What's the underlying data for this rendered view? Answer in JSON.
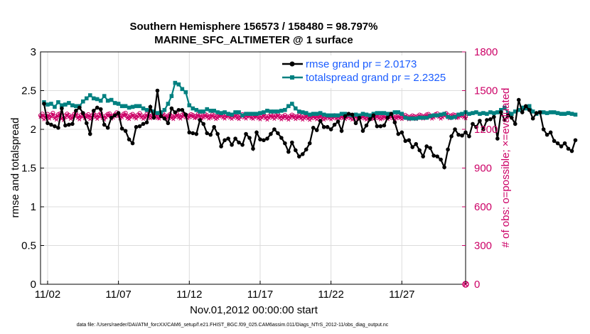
{
  "chart_data": {
    "type": "line",
    "title": "Southern Hemisphere 156573 / 158480 = 98.797%",
    "subtitle": "MARINE_SFC_ALTIMETER @ 1 surface",
    "xlabel": "Nov.01,2012 00:00:00 start",
    "ylabel_left": "rmse and totalspread",
    "ylabel_right": "# of obs: o=possible; ×=evaluated",
    "x_ticks": [
      "11/02",
      "11/07",
      "11/12",
      "11/17",
      "11/22",
      "11/27"
    ],
    "x_tick_days": [
      2,
      7,
      12,
      17,
      22,
      27
    ],
    "xlim_days": [
      1.5,
      31.5
    ],
    "ylim_left": [
      0,
      3
    ],
    "yticks_left": [
      "0",
      "0.5",
      "1",
      "1.5",
      "2",
      "2.5",
      "3"
    ],
    "ylim_right": [
      0,
      1800
    ],
    "yticks_right": [
      "0",
      "300",
      "600",
      "900",
      "1200",
      "1500",
      "1800"
    ],
    "grid": true,
    "legend_position": "top-right",
    "colors": {
      "rmse": "#000000",
      "totalspread": "#008080",
      "obs": "#cc0066",
      "legend_text": "#1a5cff"
    },
    "series": [
      {
        "name": "rmse grand pr = 2.0173",
        "axis": "left",
        "x_start_day": 1.75,
        "x_step_day": 0.25,
        "values": [
          2.33,
          2.08,
          2.06,
          2.04,
          2.02,
          2.27,
          2.05,
          2.06,
          2.07,
          2.24,
          2.28,
          2.21,
          2.08,
          1.94,
          2.24,
          2.28,
          2.26,
          2.06,
          2.02,
          2.15,
          2.18,
          2.21,
          2.01,
          1.98,
          1.87,
          1.82,
          2.03,
          2.04,
          2.07,
          2.09,
          2.29,
          2.15,
          2.5,
          2.17,
          2.14,
          2.08,
          2.27,
          2.22,
          2.25,
          2.25,
          2.19,
          1.96,
          1.95,
          1.94,
          2.12,
          2.07,
          1.95,
          1.93,
          2.03,
          1.94,
          1.78,
          1.86,
          1.88,
          1.8,
          1.88,
          1.83,
          1.8,
          1.94,
          1.89,
          1.75,
          1.96,
          1.87,
          1.86,
          1.88,
          1.94,
          2.0,
          1.95,
          1.89,
          1.82,
          1.71,
          1.83,
          1.73,
          1.65,
          1.68,
          1.74,
          1.82,
          2.02,
          1.99,
          2.11,
          2.03,
          2.03,
          2.0,
          2.06,
          2.1,
          1.98,
          2.17,
          2.2,
          2.19,
          2.08,
          2.15,
          1.98,
          2.05,
          2.13,
          2.18,
          2.04,
          2.04,
          2.05,
          2.15,
          2.2,
          2.09,
          1.94,
          1.96,
          1.85,
          1.86,
          1.77,
          1.81,
          1.73,
          1.65,
          1.78,
          1.76,
          1.66,
          1.65,
          1.61,
          1.51,
          1.74,
          1.91,
          2.0,
          1.93,
          1.92,
          1.96,
          1.91,
          2.07,
          2.03,
          2.11,
          2.0,
          2.12,
          2.13,
          2.16,
          1.88,
          2.22,
          2.12,
          2.18,
          2.15,
          2.07,
          2.38,
          2.22,
          2.3,
          2.25,
          2.14,
          2.21,
          2.22,
          2.0,
          1.93,
          1.96,
          1.85,
          1.82,
          1.78,
          1.82,
          1.75,
          1.72,
          1.86
        ]
      },
      {
        "name": "totalspread grand pr = 2.2325",
        "axis": "left",
        "x_start_day": 1.75,
        "x_step_day": 0.25,
        "values": [
          2.35,
          2.32,
          2.33,
          2.29,
          2.35,
          2.31,
          2.32,
          2.34,
          2.31,
          2.3,
          2.3,
          2.36,
          2.4,
          2.44,
          2.4,
          2.39,
          2.37,
          2.43,
          2.37,
          2.38,
          2.34,
          2.33,
          2.3,
          2.3,
          2.28,
          2.29,
          2.3,
          2.3,
          2.27,
          2.25,
          2.24,
          2.23,
          2.21,
          2.22,
          2.25,
          2.33,
          2.43,
          2.6,
          2.58,
          2.52,
          2.48,
          2.31,
          2.27,
          2.25,
          2.23,
          2.23,
          2.26,
          2.24,
          2.24,
          2.22,
          2.21,
          2.22,
          2.2,
          2.19,
          2.22,
          2.22,
          2.18,
          2.2,
          2.2,
          2.2,
          2.2,
          2.21,
          2.22,
          2.24,
          2.23,
          2.23,
          2.23,
          2.24,
          2.25,
          2.3,
          2.33,
          2.27,
          2.23,
          2.22,
          2.21,
          2.19,
          2.2,
          2.2,
          2.21,
          2.19,
          2.18,
          2.18,
          2.18,
          2.18,
          2.2,
          2.2,
          2.19,
          2.18,
          2.19,
          2.18,
          2.2,
          2.19,
          2.18,
          2.2,
          2.21,
          2.21,
          2.21,
          2.2,
          2.2,
          2.22,
          2.22,
          2.2,
          2.15,
          2.14,
          2.14,
          2.14,
          2.15,
          2.15,
          2.15,
          2.17,
          2.18,
          2.18,
          2.19,
          2.2,
          2.16,
          2.15,
          2.16,
          2.19,
          2.2,
          2.22,
          2.2,
          2.21,
          2.22,
          2.2,
          2.21,
          2.2,
          2.22,
          2.21,
          2.22,
          2.25,
          2.28,
          2.21,
          2.2,
          2.23,
          2.25,
          2.28,
          2.27,
          2.3,
          2.23,
          2.2,
          2.22,
          2.22,
          2.21,
          2.22,
          2.22,
          2.21,
          2.2,
          2.2,
          2.21,
          2.2,
          2.19
        ]
      },
      {
        "name": "possible",
        "axis": "right",
        "marker": "o",
        "x_start_day": 1.5,
        "x_step_day": 0.125,
        "values": [
          1308,
          1320,
          1290,
          1302,
          1318,
          1296,
          1312,
          1326,
          1300,
          1288,
          1315,
          1322,
          1296,
          1284,
          1306,
          1320,
          1310,
          1294,
          1300,
          1318,
          1326,
          1302,
          1290,
          1312,
          1322,
          1298,
          1306,
          1316,
          1292,
          1304,
          1320,
          1308,
          1294,
          1312,
          1324,
          1300,
          1288,
          1306,
          1318,
          1322,
          1296,
          1304,
          1314,
          1330,
          1316,
          1298,
          1306,
          1320,
          1326,
          1300,
          1292,
          1310,
          1318,
          1304,
          1296,
          1312,
          1324,
          1306,
          1294,
          1302,
          1318,
          1310,
          1298,
          1306,
          1320,
          1314,
          1300,
          1296,
          1312,
          1322,
          1308,
          1296,
          1304,
          1316,
          1300,
          1292,
          1310,
          1318,
          1304,
          1296,
          1312,
          1320,
          1306,
          1298,
          1306,
          1316,
          1310,
          1300,
          1302,
          1318,
          1312,
          1296,
          1304,
          1316,
          1308,
          1296,
          1302,
          1314,
          1306,
          1292,
          1300,
          1312,
          1318,
          1304,
          1296,
          1310,
          1316,
          1302,
          1294,
          1306,
          1314,
          1300,
          1292,
          1308,
          1316,
          1304,
          1296,
          1310,
          1318,
          1300,
          1294,
          1306,
          1312,
          1298,
          1290,
          1304,
          1314,
          1300,
          1288,
          1302,
          1312,
          1304,
          1294,
          1306,
          1316,
          1302,
          1290,
          1300,
          1310,
          1298,
          1288,
          1302,
          1312,
          1304,
          1292,
          1300,
          1308,
          1298,
          1288,
          1300,
          1310,
          1296,
          1286,
          1298,
          1308,
          1300,
          1290,
          1302,
          1310,
          1298,
          1288,
          1296,
          1306,
          1298,
          1290,
          1300,
          1308,
          1296,
          1286,
          1298,
          1306,
          1300,
          1292,
          1302,
          1310,
          1298,
          1288,
          1296,
          1306,
          1298,
          1290,
          1300,
          1308,
          1296,
          1288,
          1298,
          1306,
          1300,
          1292,
          1302,
          1310,
          1298,
          1290,
          1296,
          1306,
          1300,
          1292,
          1302,
          1310,
          1298,
          1290,
          1298,
          1306,
          1300,
          1292,
          1302,
          1310,
          1300,
          1290,
          1298,
          1306,
          1300,
          1292,
          1302,
          1312,
          1306,
          1296,
          1302,
          1314,
          1318,
          1306,
          1296,
          1304,
          1316,
          1322,
          1308,
          1296,
          1306,
          1318,
          1324,
          1312,
          1298,
          1306,
          1314,
          1310,
          1300,
          1304,
          1314,
          1318,
          1306,
          1298
        ]
      },
      {
        "name": "evaluated",
        "axis": "right",
        "marker": "x",
        "x_start_day": 1.5,
        "x_step_day": 0.125,
        "values": [
          1296,
          1306,
          1276,
          1290,
          1304,
          1282,
          1298,
          1312,
          1286,
          1274,
          1302,
          1308,
          1282,
          1270,
          1292,
          1306,
          1296,
          1280,
          1286,
          1304,
          1312,
          1288,
          1276,
          1298,
          1308,
          1284,
          1292,
          1302,
          1278,
          1290,
          1306,
          1294,
          1280,
          1298,
          1310,
          1286,
          1274,
          1292,
          1304,
          1308,
          1282,
          1290,
          1300,
          1318,
          1302,
          1284,
          1292,
          1306,
          1312,
          1286,
          1278,
          1296,
          1304,
          1290,
          1282,
          1298,
          1310,
          1292,
          1280,
          1288,
          1304,
          1296,
          1284,
          1292,
          1306,
          1300,
          1286,
          1282,
          1298,
          1308,
          1294,
          1282,
          1290,
          1302,
          1286,
          1278,
          1296,
          1304,
          1290,
          1282,
          1298,
          1306,
          1292,
          1284,
          1292,
          1302,
          1296,
          1286,
          1288,
          1304,
          1298,
          1282,
          1290,
          1302,
          1294,
          1282,
          1288,
          1300,
          1292,
          1278,
          1286,
          1298,
          1304,
          1290,
          1282,
          1296,
          1302,
          1288,
          1280,
          1292,
          1300,
          1286,
          1278,
          1294,
          1302,
          1290,
          1282,
          1296,
          1304,
          1286,
          1280,
          1292,
          1298,
          1284,
          1276,
          1290,
          1300,
          1286,
          1274,
          1288,
          1298,
          1290,
          1280,
          1292,
          1302,
          1288,
          1276,
          1286,
          1296,
          1284,
          1274,
          1288,
          1298,
          1290,
          1278,
          1286,
          1294,
          1284,
          1274,
          1286,
          1296,
          1282,
          1272,
          1284,
          1294,
          1286,
          1276,
          1288,
          1296,
          1284,
          1274,
          1282,
          1292,
          1284,
          1276,
          1286,
          1294,
          1282,
          1272,
          1284,
          1292,
          1286,
          1278,
          1288,
          1296,
          1284,
          1274,
          1282,
          1292,
          1284,
          1276,
          1286,
          1294,
          1282,
          1274,
          1284,
          1292,
          1286,
          1278,
          1288,
          1296,
          1284,
          1276,
          1282,
          1292,
          1286,
          1278,
          1288,
          1296,
          1284,
          1276,
          1284,
          1292,
          1286,
          1278,
          1288,
          1296,
          1286,
          1276,
          1284,
          1292,
          1286,
          1278,
          1288,
          1298,
          1292,
          1282,
          1288,
          1300,
          1304,
          1292,
          1282,
          1290,
          1302,
          1308,
          1294,
          1282,
          1292,
          1304,
          1310,
          1298,
          1284,
          1292,
          1300,
          1296,
          1286,
          1290,
          1300,
          1304,
          1292,
          1284
        ]
      }
    ],
    "extra_marker_right_axis": {
      "x_day": 31.5,
      "value": 0
    }
  },
  "footnote": "data file: /Users/raeder/DAI/ATM_forcXX/CAM6_setup/f.e21.FHIST_BGC.f09_025.CAM6assim.011/Diags_NTrS_2012-11/obs_diag_output.nc"
}
